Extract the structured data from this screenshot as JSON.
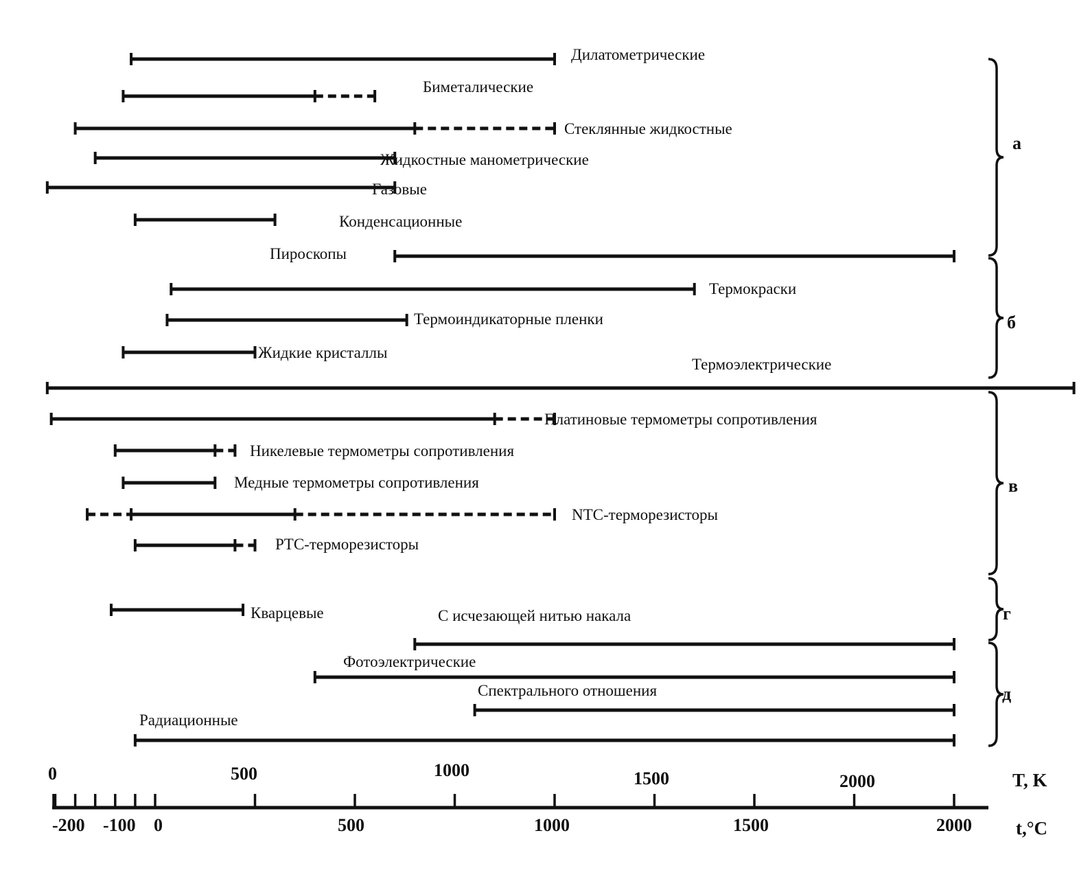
{
  "ranges": [
    {
      "label": "Дилатометрические",
      "solid": [
        -60,
        1000
      ],
      "dashed": null
    },
    {
      "label": "Биметалические",
      "solid": [
        -80,
        400
      ],
      "dashed": [
        400,
        550
      ]
    },
    {
      "label": "Стеклянные жидкостные",
      "solid": [
        -200,
        650
      ],
      "dashed": [
        650,
        1000
      ]
    },
    {
      "label": "Жидкостные манометрические",
      "solid": [
        -150,
        600
      ],
      "dashed": null
    },
    {
      "label": "Газовые",
      "solid": [
        -270,
        600
      ],
      "dashed": null
    },
    {
      "label": "Конденсационные",
      "solid": [
        -50,
        300
      ],
      "dashed": null
    },
    {
      "label": "Пироскопы",
      "solid": [
        600,
        2000
      ],
      "dashed": null
    },
    {
      "label": "Термокраски",
      "solid": [
        40,
        1350
      ],
      "dashed": null
    },
    {
      "label": "Термоиндикаторные пленки",
      "solid": [
        30,
        630
      ],
      "dashed": null
    },
    {
      "label": "Жидкие кристаллы",
      "solid": [
        -80,
        250
      ],
      "dashed": null
    },
    {
      "label": "Термоэлектрические",
      "solid": [
        -270,
        2300
      ],
      "dashed": null
    },
    {
      "label": "Платиновые термометры сопротивления",
      "solid": [
        -260,
        850
      ],
      "dashed": [
        850,
        1000
      ]
    },
    {
      "label": "Никелевые термометры сопротивления",
      "solid": [
        -100,
        150
      ],
      "dashed": [
        150,
        200
      ]
    },
    {
      "label": "Медные термометры сопротивления",
      "solid": [
        -80,
        150
      ],
      "dashed": null
    },
    {
      "label": "NTC-терморезисторы",
      "solid": [
        -60,
        350
      ],
      "dashed": [
        350,
        1000
      ],
      "dashed_left": [
        -170,
        -60
      ]
    },
    {
      "label": "PTC-терморезисторы",
      "solid": [
        -50,
        200
      ],
      "dashed": [
        200,
        250
      ]
    },
    {
      "label": "Кварцевые",
      "solid": [
        -110,
        220
      ],
      "dashed": null
    },
    {
      "label": "С исчезающей нитью накала",
      "solid": [
        650,
        2000
      ],
      "dashed": null
    },
    {
      "label": "Фотоэлектрические",
      "solid": [
        400,
        2000
      ],
      "dashed": null
    },
    {
      "label": "Спектрального отношения",
      "solid": [
        800,
        2000
      ],
      "dashed": null
    },
    {
      "label": "Радиационные",
      "solid": [
        -50,
        2000
      ],
      "dashed": null
    }
  ],
  "groups": [
    {
      "letter": "а"
    },
    {
      "letter": "б"
    },
    {
      "letter": "в"
    },
    {
      "letter": "г"
    },
    {
      "letter": "д"
    }
  ],
  "axis": {
    "kelvin_unit": "T, K",
    "celsius_unit": "t,°C",
    "kelvin_ticks": [
      {
        "value": 0,
        "label": "0"
      },
      {
        "value": 500,
        "label": "500"
      },
      {
        "value": 1000,
        "label": "1000"
      },
      {
        "value": 1500,
        "label": "1500"
      },
      {
        "value": 2000,
        "label": "2000"
      }
    ],
    "celsius_ticks": [
      {
        "value": -200,
        "label": "-200"
      },
      {
        "value": -100,
        "label": "-100"
      },
      {
        "value": 0,
        "label": "0"
      },
      {
        "value": 500,
        "label": "500"
      },
      {
        "value": 1000,
        "label": "1000"
      },
      {
        "value": 1500,
        "label": "1500"
      },
      {
        "value": 2000,
        "label": "2000"
      }
    ]
  }
}
